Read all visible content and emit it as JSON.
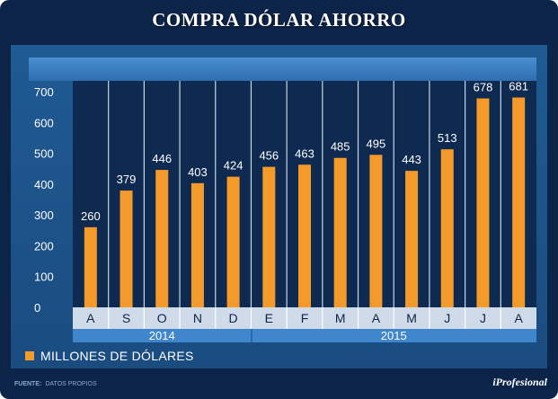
{
  "title": "COMPRA DÓLAR AHORRO",
  "colors": {
    "background": "#0d2449",
    "panel": "#1f5a93",
    "plot": "#0f2a50",
    "bar": "#f39a2b",
    "category_band": "#cfdbe8"
  },
  "legend_label": "MILLONES DE DÓLARES",
  "source": {
    "label": "FUENTE:",
    "text": "DATOS PROPIOS"
  },
  "brand": "iProfesional",
  "chart_data": {
    "type": "bar",
    "title": "COMPRA DÓLAR AHORRO",
    "categories": [
      "A",
      "S",
      "O",
      "N",
      "D",
      "E",
      "F",
      "M",
      "A",
      "M",
      "J",
      "J",
      "A"
    ],
    "values": [
      260,
      379,
      446,
      403,
      424,
      456,
      463,
      485,
      495,
      443,
      513,
      678,
      681
    ],
    "series_name": "MILLONES DE DÓLARES",
    "ylim": [
      0,
      700
    ],
    "yticks": [
      "0",
      "100",
      "200",
      "300",
      "400",
      "500",
      "600",
      "700"
    ],
    "years": [
      {
        "label": "2014",
        "count": 5
      },
      {
        "label": "2015",
        "count": 8
      }
    ],
    "xlabel": "",
    "ylabel": ""
  }
}
